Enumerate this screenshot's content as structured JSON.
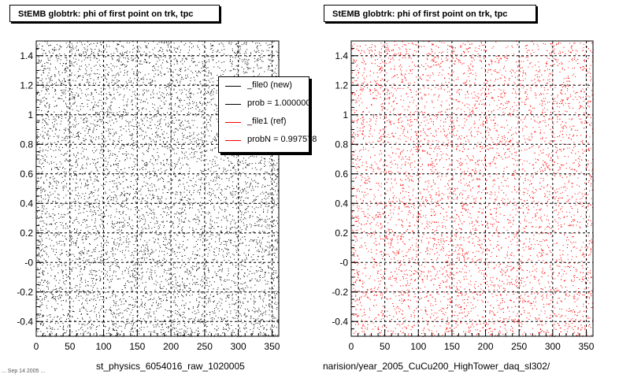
{
  "footer_small": "... Sep 14 2005 ...",
  "chart_data": [
    {
      "type": "scatter",
      "title": "StEMB globtrk: phi of first point on trk, tpc",
      "xlabel": "st_physics_6054016_raw_1020005",
      "ylabel": "",
      "xlim": [
        0,
        360
      ],
      "ylim": [
        -0.5,
        1.5
      ],
      "xticks": [
        "0",
        "50",
        "100",
        "150",
        "200",
        "250",
        "300",
        "350"
      ],
      "yticks": [
        "-0.4",
        "-0.2",
        "-0",
        "0.2",
        "0.4",
        "0.6",
        "0.8",
        "1",
        "1.2",
        "1.4"
      ],
      "grid": true,
      "series": [
        {
          "name": "_file0 (new)",
          "color": "#000000",
          "n_points": 7000
        }
      ],
      "legend": {
        "placement": "top-right",
        "entries": [
          {
            "label": "_file0 (new)",
            "color": "#000000"
          },
          {
            "label": "prob = 1.000000",
            "color": "#000000"
          },
          {
            "label": "_file1 (ref)",
            "color": "#ff0000"
          },
          {
            "label": "probN = 0.997578",
            "color": "#ff0000"
          }
        ]
      }
    },
    {
      "type": "scatter",
      "title": "StEMB globtrk: phi of first point on trk, tpc",
      "xlabel": "narision/year_2005_CuCu200_HighTower_daq_sl302/",
      "ylabel": "",
      "xlim": [
        0,
        360
      ],
      "ylim": [
        -0.5,
        1.5
      ],
      "xticks": [
        "0",
        "50",
        "100",
        "150",
        "200",
        "250",
        "300",
        "350"
      ],
      "yticks": [
        "-0.4",
        "-0.2",
        "-0",
        "0.2",
        "0.4",
        "0.6",
        "0.8",
        "1",
        "1.2",
        "1.4"
      ],
      "grid": true,
      "series": [
        {
          "name": "_file1 (ref)",
          "color": "#ff0000",
          "n_points": 7000
        }
      ]
    }
  ]
}
